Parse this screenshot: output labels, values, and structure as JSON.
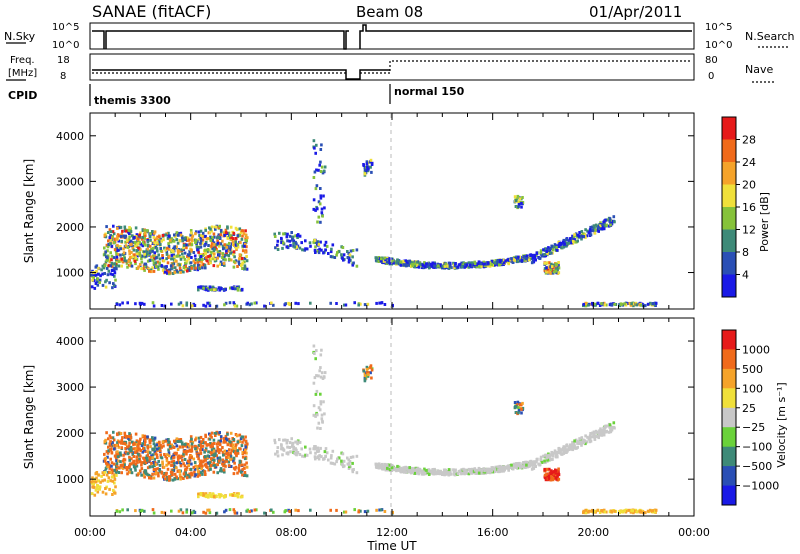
{
  "header": {
    "title": "SANAE (fitACF)",
    "beam": "Beam 08",
    "date": "01/Apr/2011"
  },
  "status_panels": {
    "nsky_label": "N.Sky",
    "nsky_ticks": [
      "10^5",
      "10^0"
    ],
    "nsearch_label": "N.Search",
    "freq_label_1": "Freq.",
    "freq_label_2": "[MHz]",
    "freq_ticks": [
      "18",
      "8"
    ],
    "nave_label": "Nave",
    "nave_ticks": [
      "80",
      "0"
    ],
    "cpid_label": "CPID",
    "cpid_modes": [
      "themis 3300",
      "normal 150"
    ]
  },
  "colors": {
    "power": [
      "#1a1ae6",
      "#2a4fb5",
      "#3e8a78",
      "#86c23a",
      "#f0e03a",
      "#f5a32a",
      "#f06a1a",
      "#e61a1a"
    ],
    "velocity": [
      "#1a1ae6",
      "#2a4fb5",
      "#3e8a78",
      "#6ad23a",
      "#c8c8c8",
      "#f0e03a",
      "#f5a32a",
      "#f06a1a",
      "#e61a1a"
    ]
  },
  "chart_data": [
    {
      "type": "heatmap",
      "ylabel": "Slant Range [km]",
      "yticks": [
        "1000",
        "2000",
        "3000",
        "4000"
      ],
      "ylim": [
        200,
        4500
      ],
      "colorbar": {
        "label": "Power [dB]",
        "ticks": [
          "4",
          "8",
          "12",
          "16",
          "20",
          "24",
          "28"
        ],
        "range": [
          0,
          32
        ]
      },
      "x_range_hours": [
        0,
        24
      ],
      "marker_hour": 12
    },
    {
      "type": "heatmap",
      "ylabel": "Slant Range [km]",
      "yticks": [
        "1000",
        "2000",
        "3000",
        "4000"
      ],
      "ylim": [
        200,
        4500
      ],
      "colorbar": {
        "label": "Velocity [m s⁻¹]",
        "ticks": [
          "1000",
          "500",
          "100",
          "25",
          "−25",
          "−100",
          "−500",
          "−1000"
        ]
      },
      "xlabel": "Time UT",
      "xticks": [
        "00:00",
        "04:00",
        "08:00",
        "12:00",
        "16:00",
        "20:00",
        "00:00"
      ],
      "x_range_hours": [
        0,
        24
      ],
      "marker_hour": 12
    }
  ]
}
